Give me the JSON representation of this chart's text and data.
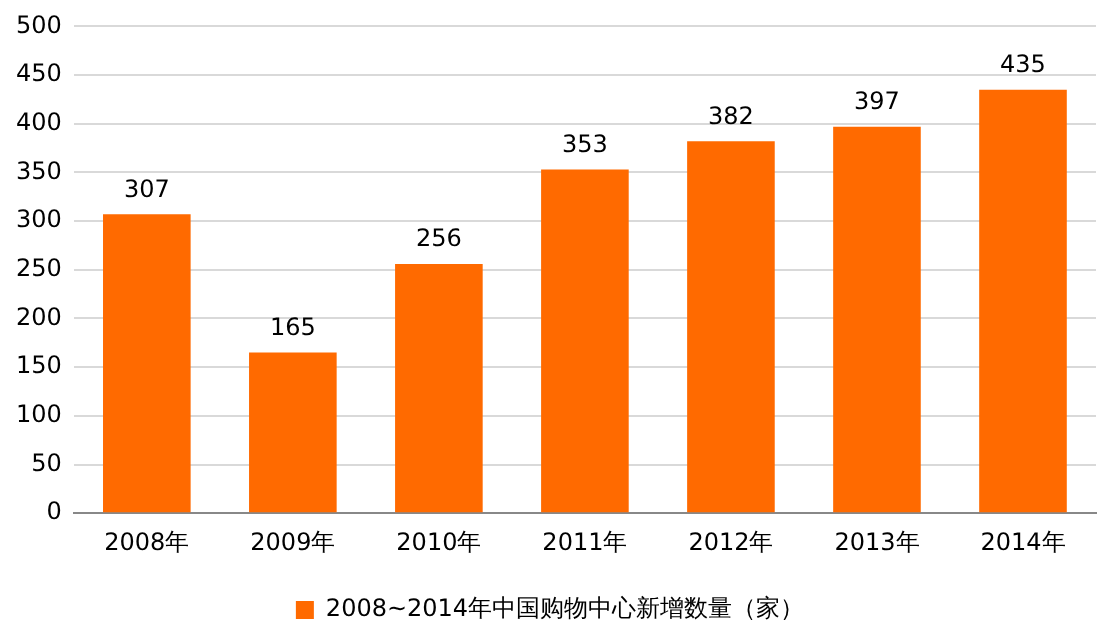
{
  "chart_data": {
    "type": "bar",
    "categories": [
      "2008年",
      "2009年",
      "2010年",
      "2011年",
      "2012年",
      "2013年",
      "2014年"
    ],
    "series": [
      {
        "name": "2008~2014年中国购物中心新增数量（家）",
        "color": "#ff6a00",
        "values": [
          307,
          165,
          256,
          353,
          382,
          397,
          435
        ]
      }
    ],
    "ylim": [
      0,
      500
    ],
    "yticks": [
      0,
      50,
      100,
      150,
      200,
      250,
      300,
      350,
      400,
      450,
      500
    ],
    "grid": "y",
    "legend": "bottom",
    "data_labels": true
  }
}
